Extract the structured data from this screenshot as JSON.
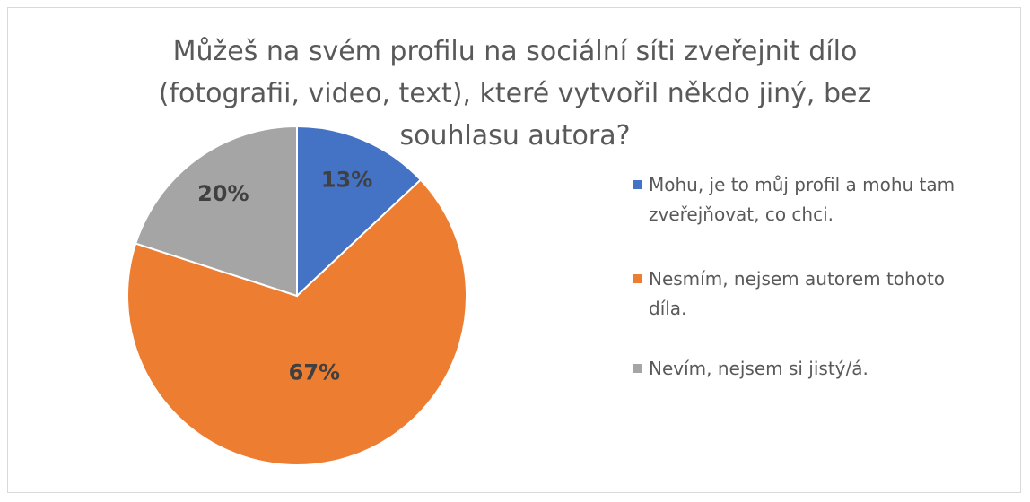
{
  "chart_data": {
    "type": "pie",
    "title": "Můžeš na svém profilu na sociální síti zveřejnit dílo (fotografii, video, text), které vytvořil někdo jiný, bez souhlasu autora?",
    "categories": [
      "Mohu, je to můj profil a mohu tam zveřejňovat, co chci.",
      "Nesmím, nejsem autorem tohoto díla.",
      "Nevím, nejsem si jistý/á."
    ],
    "values": [
      13,
      67,
      20
    ],
    "value_labels": [
      "13%",
      "67%",
      "20%"
    ],
    "colors": [
      "#4472c4",
      "#ed7d31",
      "#a5a5a5"
    ],
    "legend": "right"
  }
}
